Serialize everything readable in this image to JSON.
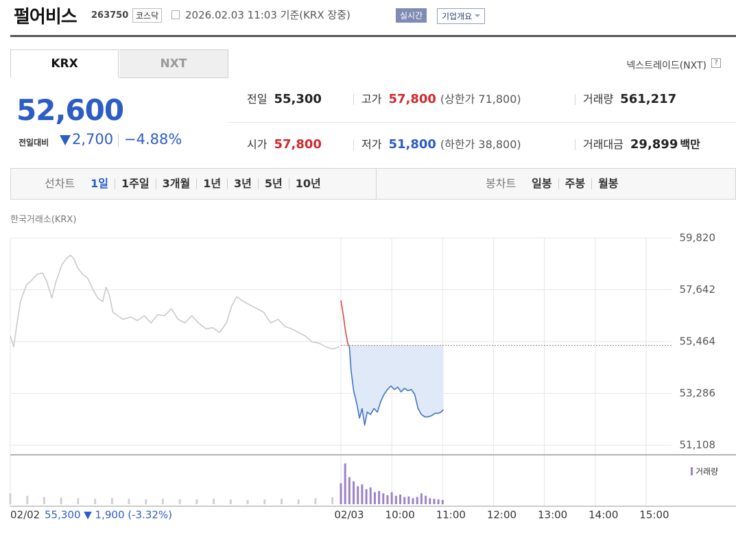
{
  "header": {
    "title": "펄어비스",
    "code": "263750",
    "market": "코스닥",
    "timestamp": "2026.02.03 11:03 기준(KRX 장중)",
    "realtime": "실시간",
    "overview": "기업개요"
  },
  "tabs": [
    "KRX",
    "NXT"
  ],
  "active_tab": 0,
  "nxt_link": "넥스트레이드(NXT)",
  "quote": {
    "price": "52,600",
    "change_label": "전일대비",
    "change": "2,700",
    "change_pct": "−4.88%",
    "color": "#2c5cc5"
  },
  "stats": [
    [
      {
        "label": "전일",
        "value": "55,300",
        "color": "#222222"
      },
      {
        "label": "고가",
        "value": "57,800",
        "note": "(상한가 71,800)",
        "color": "#d0282e"
      },
      {
        "label": "거래량",
        "value": "561,217",
        "color": "#222222"
      }
    ],
    [
      {
        "label": "시가",
        "value": "57,800",
        "color": "#d0282e"
      },
      {
        "label": "저가",
        "value": "51,800",
        "note": "(하한가 38,800)",
        "color": "#2c5cc5"
      },
      {
        "label": "거래대금",
        "value": "29,899",
        "unit": "백만",
        "color": "#222222"
      }
    ]
  ],
  "chart_menu": {
    "line_label": "선차트",
    "periods": [
      "1일",
      "1주일",
      "3개월",
      "1년",
      "3년",
      "5년",
      "10년"
    ],
    "selected_period": 0,
    "candle_label": "봉차트",
    "candles": [
      "일봉",
      "주봉",
      "월봉"
    ]
  },
  "source": "한국거래소(KRX)",
  "chart_data": {
    "type": "line",
    "xlim": [
      0,
      780
    ],
    "xticks": [
      {
        "value": 0,
        "label": "02/02"
      },
      {
        "value": 390,
        "label": "02/03"
      },
      {
        "value": 450,
        "label": "10:00"
      },
      {
        "value": 510,
        "label": "11:00"
      },
      {
        "value": 570,
        "label": "12:00"
      },
      {
        "value": 630,
        "label": "13:00"
      },
      {
        "value": 690,
        "label": "14:00"
      },
      {
        "value": 750,
        "label": "15:00"
      }
    ],
    "ylim": [
      50733,
      59820
    ],
    "yticks": [
      {
        "value": 59820,
        "label": "59,820"
      },
      {
        "value": 57642,
        "label": "57,642"
      },
      {
        "value": 55464,
        "label": "55,464"
      },
      {
        "value": 53286,
        "label": "53,286"
      },
      {
        "value": 51108,
        "label": "51,108"
      }
    ],
    "grid": true,
    "baseline": 55300,
    "series": [
      {
        "color": "#c9c9c9",
        "x": [
          0,
          4,
          8,
          12,
          19,
          24,
          32,
          38,
          43,
          49,
          54,
          61,
          66,
          71,
          75,
          79,
          85,
          91,
          97,
          103,
          109,
          113,
          117,
          121,
          127,
          133,
          142,
          150,
          158,
          166,
          174,
          182,
          190,
          198,
          206,
          214,
          222,
          231,
          239,
          247,
          255,
          261,
          267,
          275,
          283,
          291,
          299,
          307,
          316,
          324,
          332,
          340,
          348,
          356,
          364,
          372,
          380,
          388
        ],
        "values": [
          55700,
          55250,
          56250,
          57150,
          57850,
          58000,
          58300,
          58350,
          58000,
          57300,
          58000,
          58700,
          58950,
          59100,
          58950,
          58600,
          58300,
          58150,
          57700,
          57300,
          57150,
          57750,
          57400,
          56700,
          56550,
          56400,
          56500,
          56350,
          56550,
          56250,
          56600,
          56550,
          56850,
          56400,
          56250,
          56550,
          56250,
          56000,
          56050,
          55850,
          56250,
          56950,
          57350,
          57150,
          57000,
          56850,
          56700,
          56250,
          56400,
          56100,
          56000,
          55850,
          55700,
          55450,
          55400,
          55250,
          55150,
          55250
        ]
      },
      {
        "color": "#d9454a",
        "x": [
          390,
          393,
          395,
          398,
          400
        ],
        "values": [
          57200,
          56550,
          56000,
          55400,
          55250
        ]
      },
      {
        "color": "#3f72c8",
        "fill": "#dfe9f7",
        "x": [
          400,
          402,
          405,
          409,
          412,
          415,
          418,
          421,
          425,
          429,
          433,
          437,
          441,
          445,
          449,
          453,
          457,
          461,
          465,
          469,
          473,
          477,
          481,
          485,
          489,
          493,
          497,
          501,
          505,
          508,
          511
        ],
        "values": [
          55250,
          54250,
          53400,
          52800,
          52250,
          52650,
          51950,
          52500,
          52400,
          52650,
          52500,
          52950,
          53250,
          53450,
          53600,
          53450,
          53550,
          53350,
          53500,
          53400,
          53450,
          53250,
          52650,
          52400,
          52300,
          52300,
          52350,
          52450,
          52450,
          52500,
          52600
        ]
      }
    ],
    "volume": {
      "legend": "거래량",
      "ylim": [
        0,
        80000
      ],
      "series": [
        {
          "color": "#d0d0d0",
          "x": [
            0,
            20,
            40,
            60,
            80,
            100,
            120,
            140,
            160,
            180,
            200,
            220,
            240,
            260,
            280,
            300,
            320,
            340,
            360,
            380
          ],
          "values": [
            18000,
            14000,
            12000,
            11000,
            10000,
            9000,
            10000,
            9000,
            8000,
            9000,
            8000,
            8000,
            9000,
            8000,
            7000,
            8000,
            9000,
            8000,
            10000,
            12000
          ]
        },
        {
          "color": "#9a82c8",
          "x": [
            390,
            395,
            400,
            405,
            410,
            415,
            420,
            425,
            430,
            435,
            440,
            445,
            450,
            455,
            460,
            465,
            470,
            475,
            480,
            485,
            490,
            495,
            500,
            505,
            510
          ],
          "values": [
            35000,
            68000,
            45000,
            38000,
            30000,
            33000,
            25000,
            28000,
            20000,
            22000,
            18000,
            15000,
            20000,
            14000,
            16000,
            12000,
            13000,
            10000,
            12000,
            18000,
            14000,
            10000,
            9000,
            8000,
            7000
          ]
        }
      ]
    },
    "footnote": "55,300 ▼ 1,900 (-3.32%)"
  }
}
